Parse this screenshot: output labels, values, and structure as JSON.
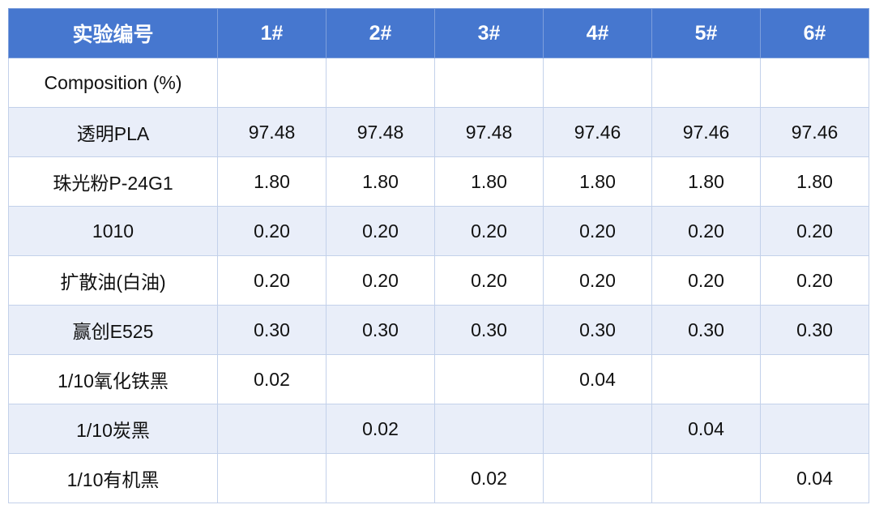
{
  "table": {
    "header": [
      "实验编号",
      "1#",
      "2#",
      "3#",
      "4#",
      "5#",
      "6#"
    ],
    "rows": [
      [
        "Composition (%)",
        "",
        "",
        "",
        "",
        "",
        ""
      ],
      [
        "透明PLA",
        "97.48",
        "97.48",
        "97.48",
        "97.46",
        "97.46",
        "97.46"
      ],
      [
        "珠光粉P-24G1",
        "1.80",
        "1.80",
        "1.80",
        "1.80",
        "1.80",
        "1.80"
      ],
      [
        "1010",
        "0.20",
        "0.20",
        "0.20",
        "0.20",
        "0.20",
        "0.20"
      ],
      [
        "扩散油(白油)",
        "0.20",
        "0.20",
        "0.20",
        "0.20",
        "0.20",
        "0.20"
      ],
      [
        "赢创E525",
        "0.30",
        "0.30",
        "0.30",
        "0.30",
        "0.30",
        "0.30"
      ],
      [
        "1/10氧化铁黑",
        "0.02",
        "",
        "",
        "0.04",
        "",
        ""
      ],
      [
        "1/10炭黑",
        "",
        "0.02",
        "",
        "",
        "0.04",
        ""
      ],
      [
        "1/10有机黑",
        "",
        "",
        "0.02",
        "",
        "",
        "0.04"
      ]
    ]
  },
  "colors": {
    "header_bg": "#4677cf",
    "header_text": "#ffffff",
    "row_alt_bg": "#e9eef9",
    "border": "#c3d1ea"
  }
}
